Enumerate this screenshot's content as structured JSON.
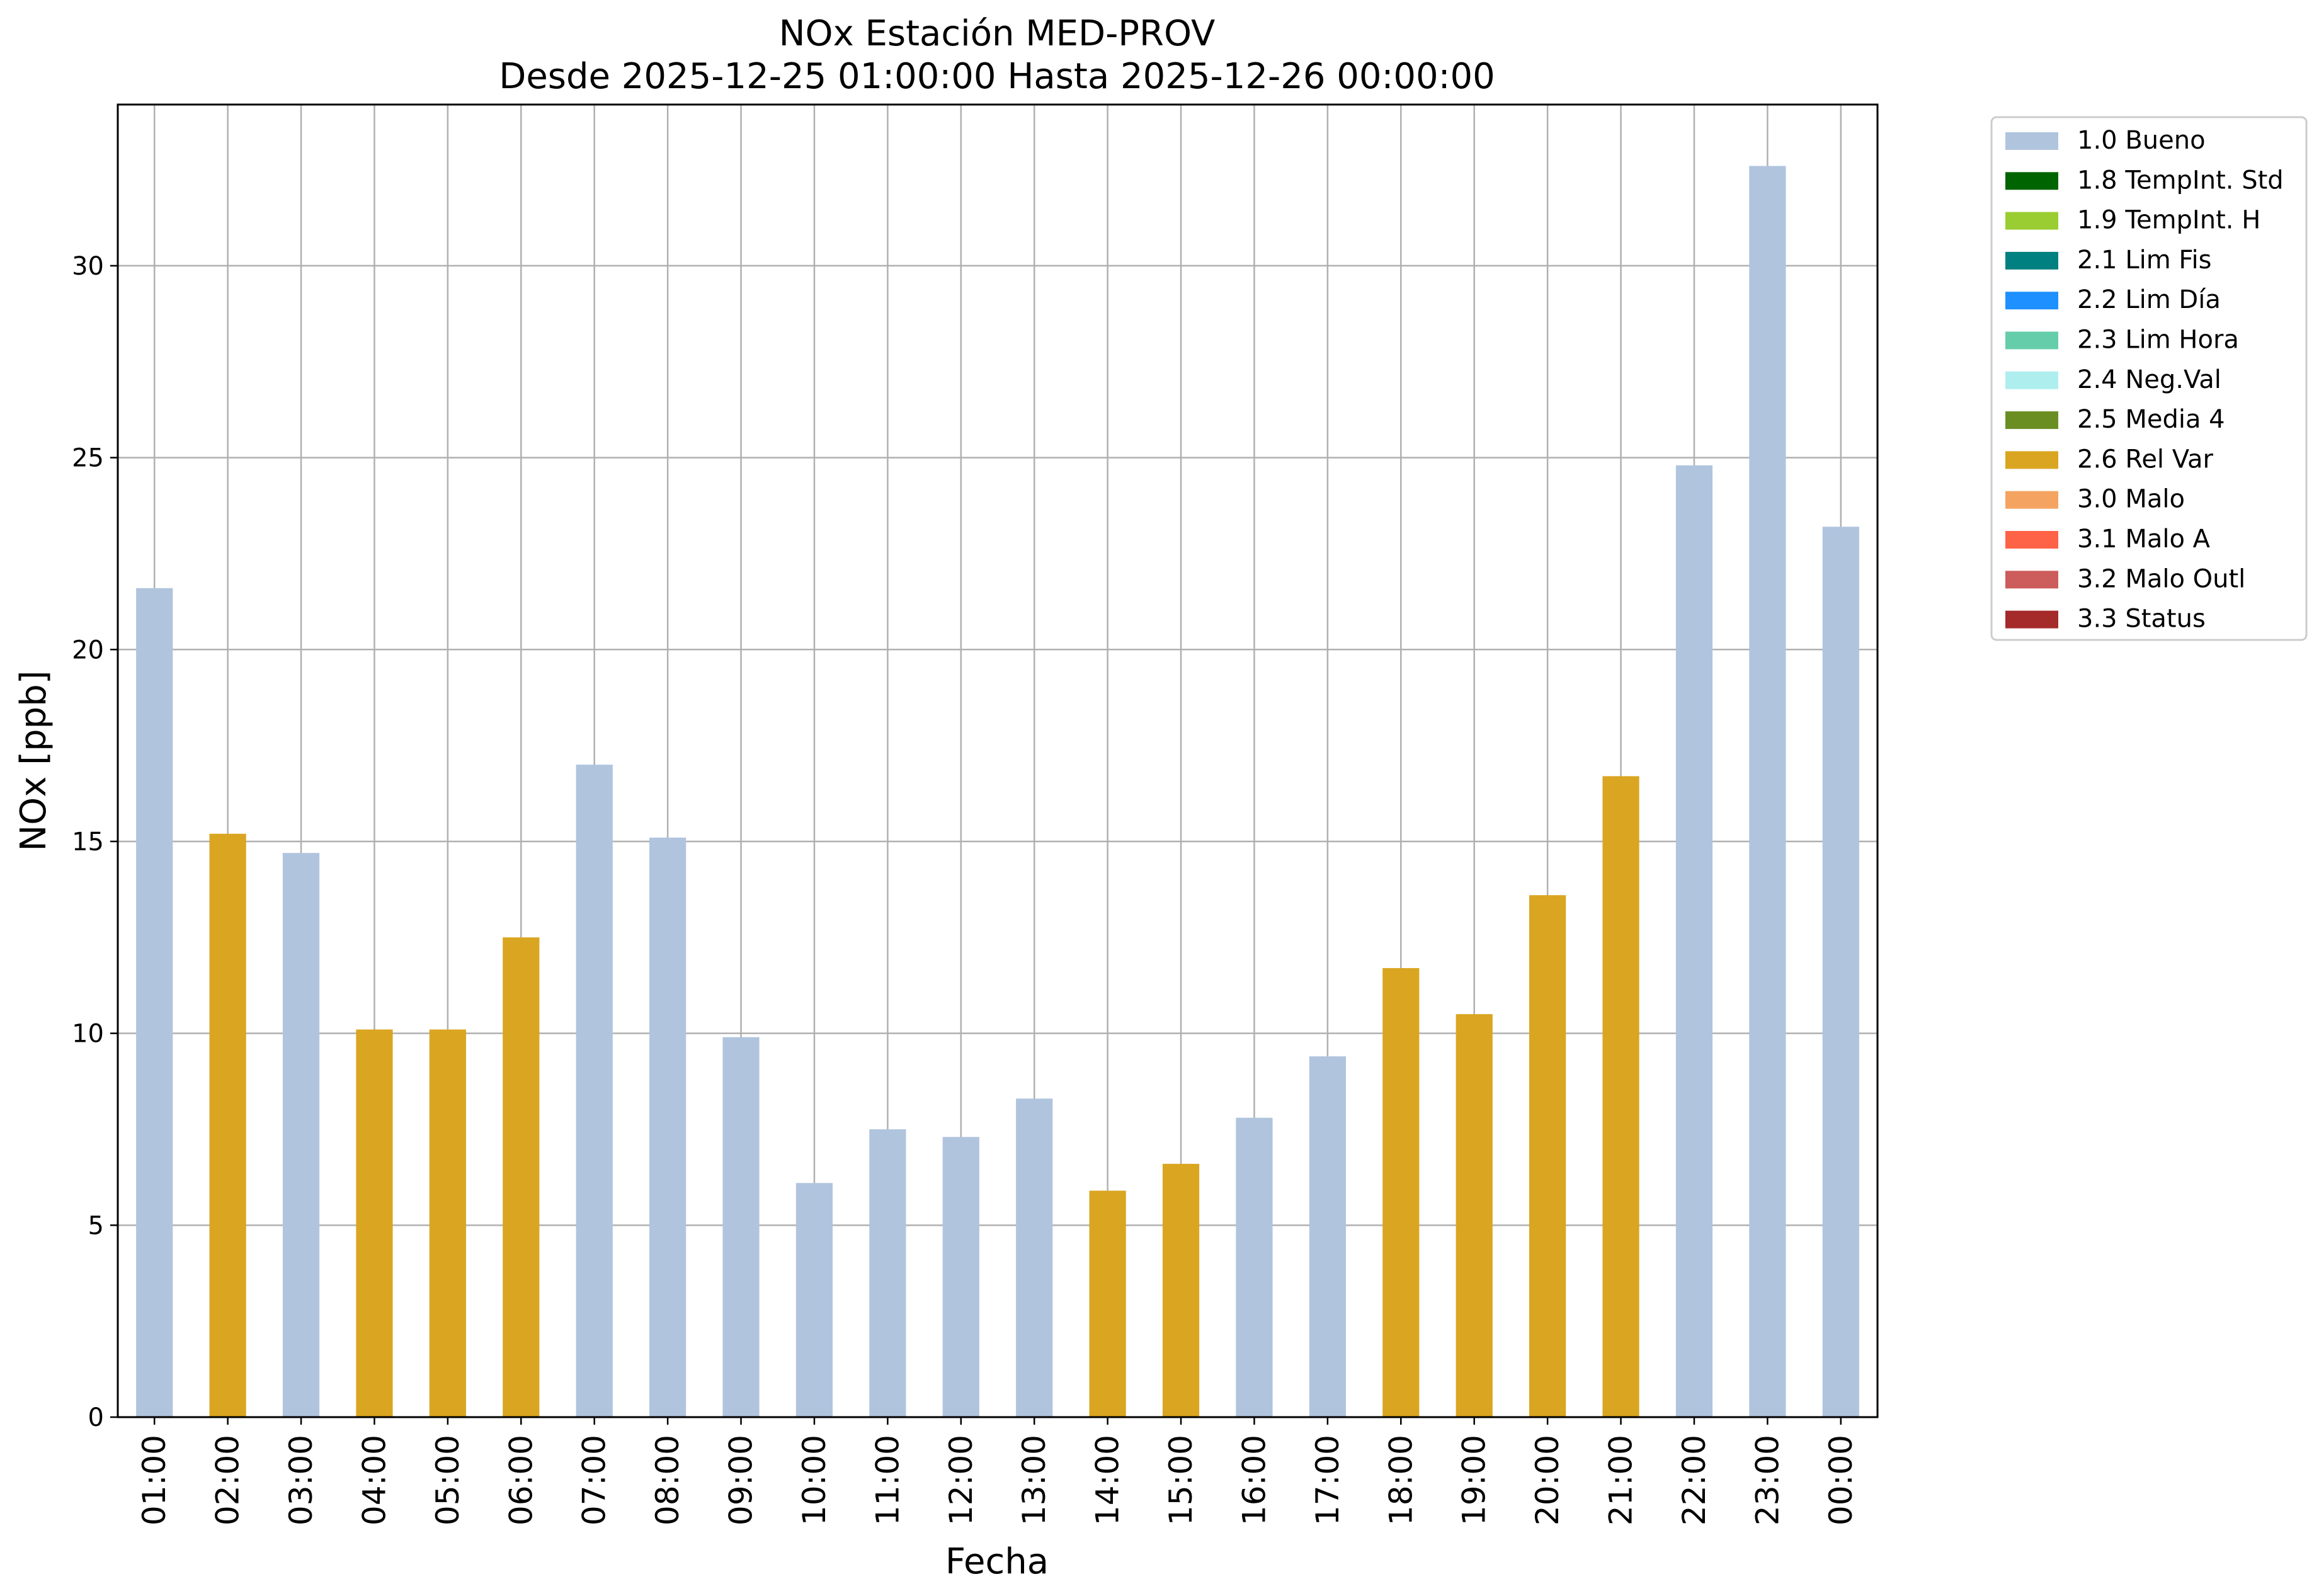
{
  "chart_data": {
    "type": "bar",
    "title": "NOx Estación MED-PROV",
    "subtitle": "Desde 2025-12-25 01:00:00 Hasta 2025-12-26 00:00:00",
    "xlabel": "Fecha",
    "ylabel": "NOx [ppb]",
    "ylim": [
      0,
      34.2
    ],
    "yticks": [
      0,
      5,
      10,
      15,
      20,
      25,
      30
    ],
    "grid": true,
    "legend_placement": "outside-top-right",
    "categories": [
      "01:00",
      "02:00",
      "03:00",
      "04:00",
      "05:00",
      "06:00",
      "07:00",
      "08:00",
      "09:00",
      "10:00",
      "11:00",
      "12:00",
      "13:00",
      "14:00",
      "15:00",
      "16:00",
      "17:00",
      "18:00",
      "19:00",
      "20:00",
      "21:00",
      "22:00",
      "23:00",
      "00:00"
    ],
    "values": [
      21.6,
      15.2,
      14.7,
      10.1,
      10.1,
      12.5,
      17.0,
      15.1,
      9.9,
      6.1,
      7.5,
      7.3,
      8.3,
      5.9,
      6.6,
      7.8,
      9.4,
      11.7,
      10.5,
      13.6,
      16.7,
      24.8,
      32.6,
      23.2
    ],
    "flags": [
      "1.0 Bueno",
      "2.6 Rel Var",
      "1.0 Bueno",
      "2.6 Rel Var",
      "2.6 Rel Var",
      "2.6 Rel Var",
      "1.0 Bueno",
      "1.0 Bueno",
      "1.0 Bueno",
      "1.0 Bueno",
      "1.0 Bueno",
      "1.0 Bueno",
      "1.0 Bueno",
      "2.6 Rel Var",
      "2.6 Rel Var",
      "1.0 Bueno",
      "1.0 Bueno",
      "2.6 Rel Var",
      "2.6 Rel Var",
      "2.6 Rel Var",
      "2.6 Rel Var",
      "1.0 Bueno",
      "1.0 Bueno",
      "1.0 Bueno"
    ],
    "legend": [
      {
        "label": "1.0 Bueno",
        "color": "#b0c4de"
      },
      {
        "label": "1.8 TempInt. Std",
        "color": "#006400"
      },
      {
        "label": "1.9 TempInt. H",
        "color": "#9acd32"
      },
      {
        "label": "2.1 Lim Fis",
        "color": "#008080"
      },
      {
        "label": "2.2 Lim Día",
        "color": "#1e90ff"
      },
      {
        "label": "2.3 Lim Hora",
        "color": "#66cdaa"
      },
      {
        "label": "2.4 Neg.Val",
        "color": "#afeeee"
      },
      {
        "label": "2.5 Media 4",
        "color": "#6b8e23"
      },
      {
        "label": "2.6 Rel Var",
        "color": "#daa520"
      },
      {
        "label": "3.0 Malo",
        "color": "#f4a460"
      },
      {
        "label": "3.1 Malo A",
        "color": "#ff6347"
      },
      {
        "label": "3.2 Malo Outl",
        "color": "#cd5c5c"
      },
      {
        "label": "3.3 Status",
        "color": "#a52a2a"
      }
    ]
  }
}
